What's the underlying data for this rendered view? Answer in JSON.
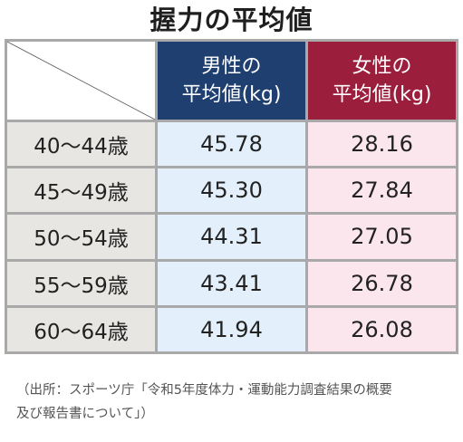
{
  "title": "握力の平均値",
  "header": {
    "male_line1": "男性の",
    "male_line2": "平均値(kg)",
    "female_line1": "女性の",
    "female_line2": "平均値(kg)"
  },
  "rows": [
    {
      "age": "40〜44歳",
      "male": "45.78",
      "female": "28.16"
    },
    {
      "age": "45〜49歳",
      "male": "45.30",
      "female": "27.84"
    },
    {
      "age": "50〜54歳",
      "male": "44.31",
      "female": "27.05"
    },
    {
      "age": "55〜59歳",
      "male": "43.41",
      "female": "26.78"
    },
    {
      "age": "60〜64歳",
      "male": "41.94",
      "female": "26.08"
    }
  ],
  "source_line1": "（出所：スポーツ庁「令和5年度体力・運動能力調査結果の概要",
  "source_line2": "及び報告書について」）",
  "colors": {
    "male_header": "#1f3f70",
    "female_header": "#9b1f3d",
    "male_cell": "#e3f0fb",
    "female_cell": "#fbe6ee",
    "age_cell": "#e8e6e3"
  }
}
